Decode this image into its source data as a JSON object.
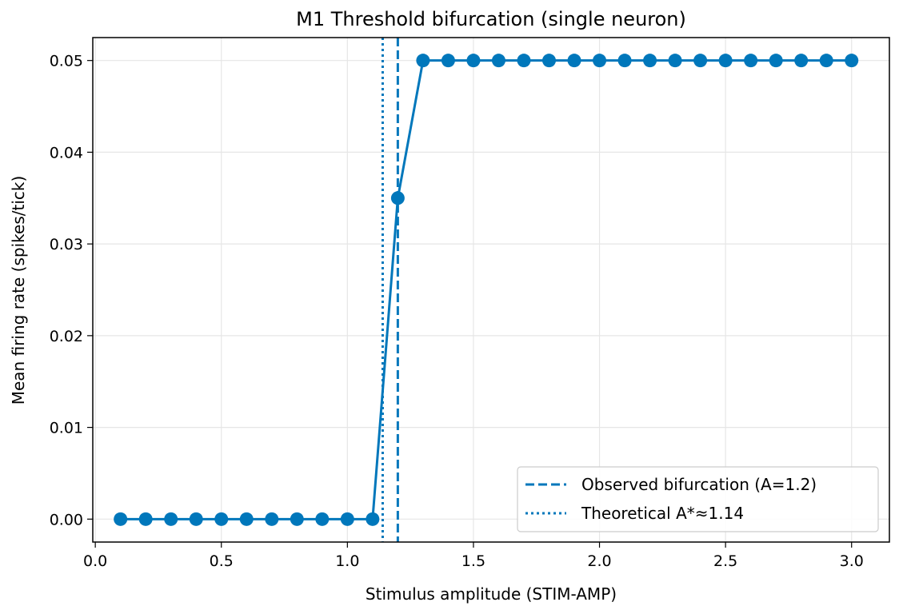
{
  "chart_data": {
    "type": "line",
    "title": "M1 Threshold bifurcation (single neuron)",
    "xlabel": "Stimulus amplitude (STIM-AMP)",
    "ylabel": "Mean firing rate (spikes/tick)",
    "xlim": [
      -0.01,
      3.15
    ],
    "ylim": [
      -0.0025,
      0.0525
    ],
    "xticks": [
      0.0,
      0.5,
      1.0,
      1.5,
      2.0,
      2.5,
      3.0
    ],
    "xtick_labels": [
      "0.0",
      "0.5",
      "1.0",
      "1.5",
      "2.0",
      "2.5",
      "3.0"
    ],
    "yticks": [
      0.0,
      0.01,
      0.02,
      0.03,
      0.04,
      0.05
    ],
    "ytick_labels": [
      "0.00",
      "0.01",
      "0.02",
      "0.03",
      "0.04",
      "0.05"
    ],
    "grid": true,
    "legend_position": "lower-right",
    "color": "#0077bb",
    "series": [
      {
        "x": [
          0.1,
          0.2,
          0.3,
          0.4,
          0.5,
          0.6,
          0.7,
          0.8,
          0.9,
          1.0,
          1.1,
          1.2,
          1.3,
          1.4,
          1.5,
          1.6,
          1.7,
          1.8,
          1.9,
          2.0,
          2.1,
          2.2,
          2.3,
          2.4,
          2.5,
          2.6,
          2.7,
          2.8,
          2.9,
          3.0
        ],
        "values": [
          0,
          0,
          0,
          0,
          0,
          0,
          0,
          0,
          0,
          0,
          0,
          0.035,
          0.05,
          0.05,
          0.05,
          0.05,
          0.05,
          0.05,
          0.05,
          0.05,
          0.05,
          0.05,
          0.05,
          0.05,
          0.05,
          0.05,
          0.05,
          0.05,
          0.05,
          0.05
        ]
      }
    ],
    "vlines": [
      {
        "name": "Observed bifurcation (A=1.2)",
        "x": 1.2,
        "style": "dashed"
      },
      {
        "name": "Theoretical A*≈1.14",
        "x": 1.14,
        "style": "dotted"
      }
    ]
  }
}
